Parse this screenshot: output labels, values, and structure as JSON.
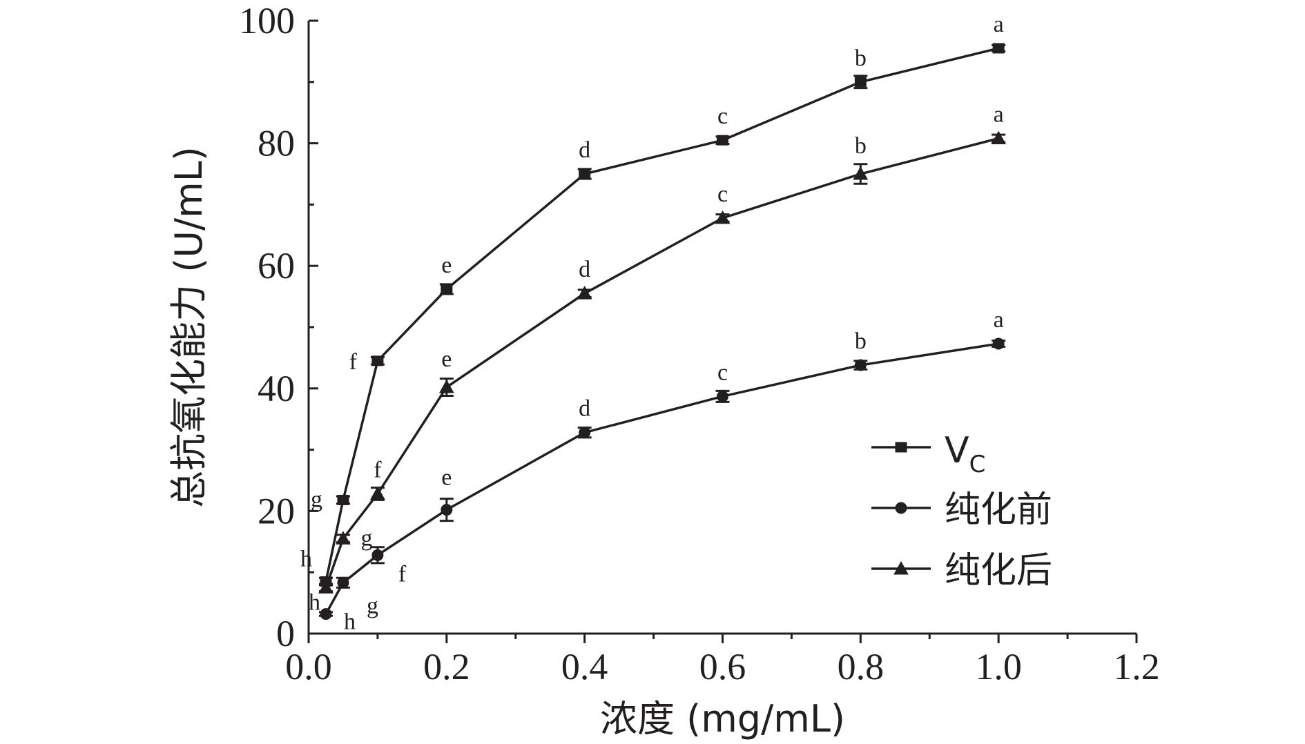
{
  "chart_data": {
    "type": "line",
    "xlabel": "浓度 (mg/mL)",
    "ylabel": "总抗氧化能力 (U/mL)",
    "xlim": [
      0.0,
      1.2
    ],
    "ylim": [
      0,
      100
    ],
    "xticks": [
      0.0,
      0.2,
      0.4,
      0.6,
      0.8,
      1.0,
      1.2
    ],
    "xtick_labels": [
      "0.0",
      "0.2",
      "0.4",
      "0.6",
      "0.8",
      "1.0",
      "1.2"
    ],
    "yticks": [
      0,
      20,
      40,
      60,
      80,
      100
    ],
    "ytick_labels": [
      "0",
      "20",
      "40",
      "60",
      "80",
      "100"
    ],
    "grid": false,
    "legend_position": "bottom-right",
    "series": [
      {
        "name": "VC",
        "name_main": "V",
        "name_sub": "C",
        "marker": "square",
        "x": [
          0.025,
          0.05,
          0.1,
          0.2,
          0.4,
          0.6,
          0.8,
          1.0
        ],
        "y": [
          8.5,
          21.8,
          44.5,
          56.2,
          75.0,
          80.5,
          90.0,
          95.5
        ],
        "err": [
          0.6,
          0.6,
          0.6,
          0.8,
          0.8,
          0.6,
          1.0,
          0.5
        ],
        "labels": [
          "h",
          "g",
          "f",
          "e",
          "d",
          "c",
          "b",
          "a"
        ]
      },
      {
        "name": "纯化前",
        "marker": "circle",
        "x": [
          0.025,
          0.05,
          0.1,
          0.2,
          0.4,
          0.6,
          0.8,
          1.0
        ],
        "y": [
          3.2,
          8.3,
          12.8,
          20.2,
          32.8,
          38.7,
          43.8,
          47.3
        ],
        "err": [
          0.3,
          0.8,
          1.3,
          1.8,
          0.8,
          0.9,
          0.7,
          0.5
        ],
        "labels": [
          "h",
          "g",
          "f",
          "e",
          "d",
          "c",
          "b",
          "a"
        ]
      },
      {
        "name": "纯化后",
        "marker": "triangle",
        "x": [
          0.025,
          0.05,
          0.1,
          0.2,
          0.4,
          0.6,
          0.8,
          1.0
        ],
        "y": [
          7.5,
          15.5,
          22.8,
          40.2,
          55.5,
          67.8,
          75.0,
          80.8
        ],
        "err": [
          0.6,
          0.6,
          1.0,
          1.4,
          0.6,
          0.6,
          1.6,
          0.6
        ],
        "labels": [
          "h",
          "g",
          "f",
          "e",
          "d",
          "c",
          "b",
          "a"
        ]
      }
    ]
  }
}
